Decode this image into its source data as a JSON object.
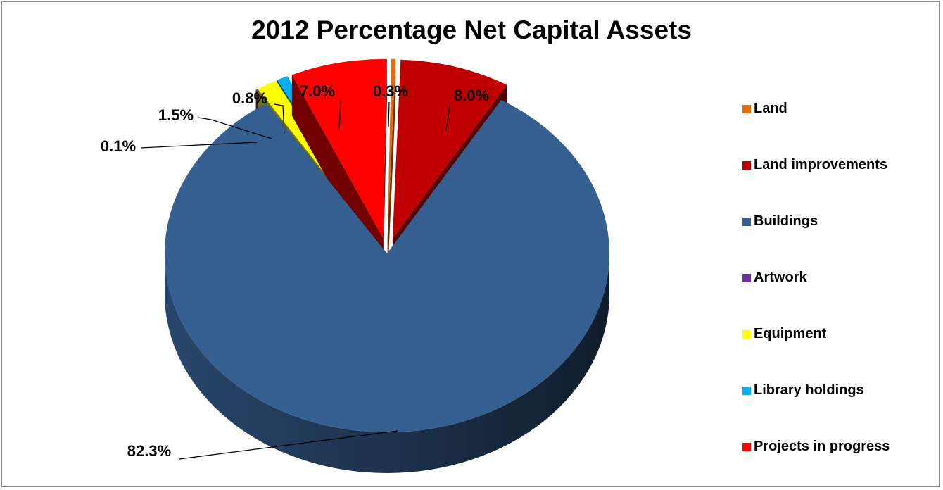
{
  "chart_data": {
    "type": "pie",
    "title": "2012 Percentage Net Capital Assets",
    "legend_position": "right",
    "slices": [
      {
        "name": "Land",
        "value": 0.3,
        "label": "0.3%",
        "color": "#e36c09"
      },
      {
        "name": "Land improvements",
        "value": 8.0,
        "label": "8.0%",
        "color": "#c00000"
      },
      {
        "name": "Buildings",
        "value": 82.3,
        "label": "82.3%",
        "color": "#365f91"
      },
      {
        "name": "Artwork",
        "value": 0.1,
        "label": "0.1%",
        "color": "#7030a0"
      },
      {
        "name": "Equipment",
        "value": 1.5,
        "label": "1.5%",
        "color": "#ffff00"
      },
      {
        "name": "Library holdings",
        "value": 0.8,
        "label": "0.8%",
        "color": "#00b0f0"
      },
      {
        "name": "Projects in progress",
        "value": 7.0,
        "label": "7.0%",
        "color": "#ff0000"
      }
    ]
  }
}
